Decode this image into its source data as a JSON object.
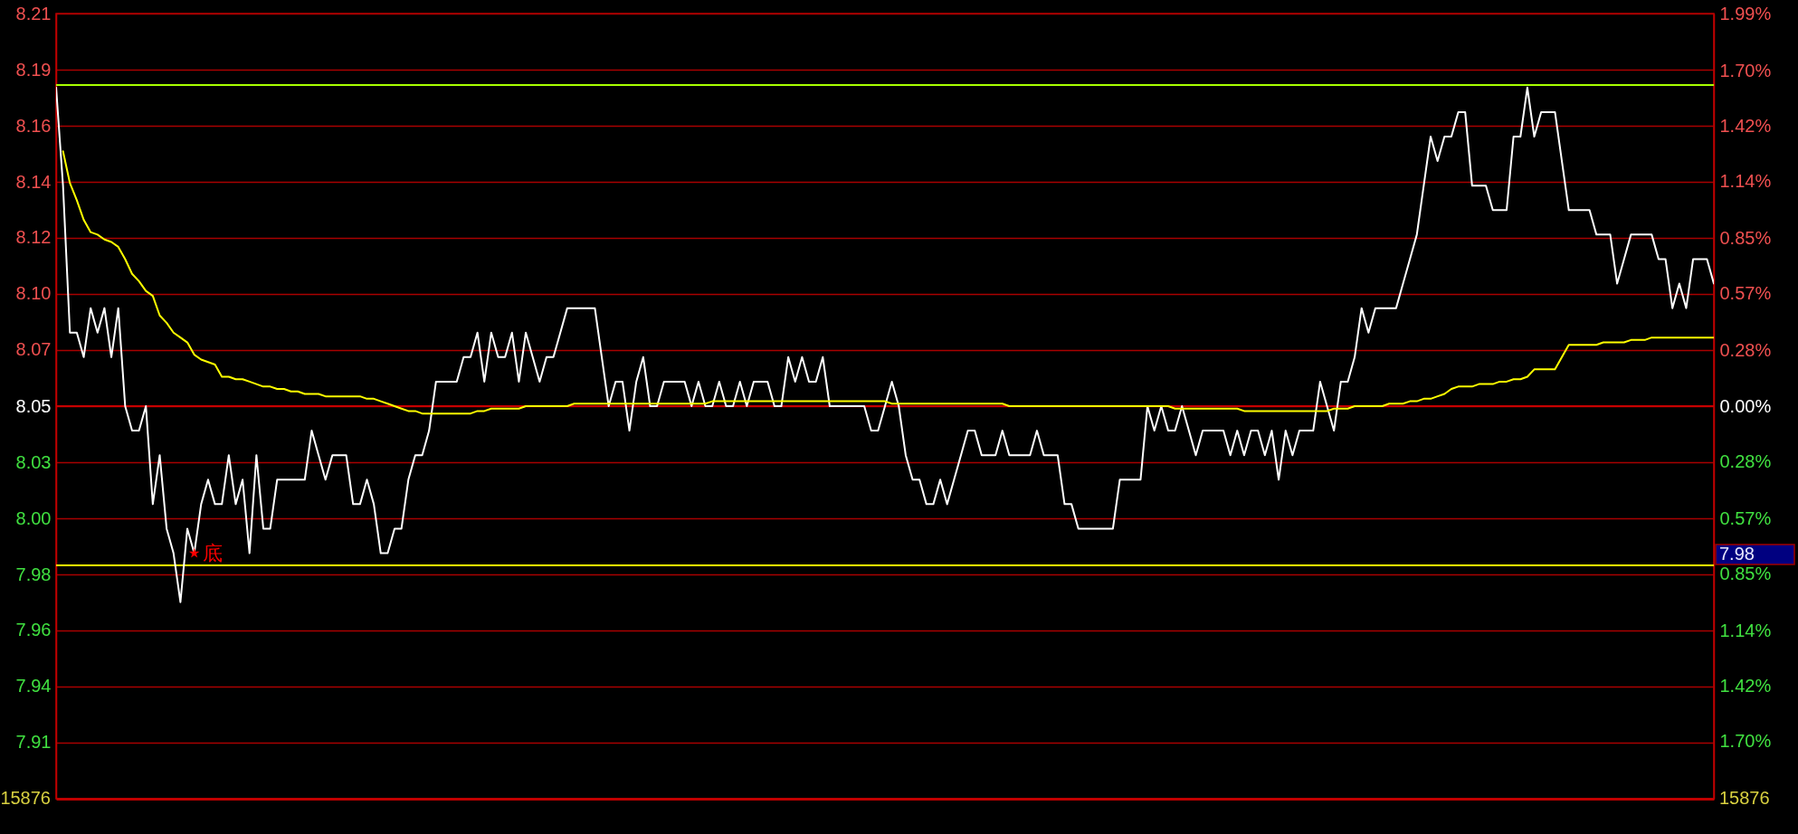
{
  "chart_data": {
    "type": "line",
    "categories": [
      null,
      null,
      null,
      null,
      null,
      null,
      null,
      null,
      null,
      null,
      null,
      null,
      null,
      null,
      null,
      null,
      null,
      null,
      null,
      null,
      null,
      null,
      null,
      null,
      null,
      null,
      null,
      null,
      null,
      null,
      null,
      null,
      null,
      null,
      null,
      null,
      null,
      null,
      null,
      null,
      null,
      null,
      null,
      null,
      null,
      null,
      null,
      null,
      null,
      null,
      null,
      null,
      null,
      null,
      null,
      null,
      null,
      null,
      null,
      null,
      null,
      null,
      null,
      null,
      null,
      null,
      null,
      null,
      null,
      null,
      null,
      null,
      null,
      null,
      null,
      null,
      null,
      null,
      null,
      null,
      null,
      null,
      null,
      null,
      null,
      null,
      null,
      null,
      null,
      null,
      null,
      null,
      null,
      null,
      null,
      null,
      null,
      null,
      null,
      null,
      null,
      null,
      null,
      null,
      null,
      null,
      null,
      null,
      null,
      null,
      null,
      null,
      null,
      null,
      null,
      null,
      null,
      null,
      null,
      null,
      null,
      null,
      null,
      null,
      null,
      null,
      null,
      null,
      null,
      null,
      null,
      null,
      null,
      null,
      null,
      null,
      null,
      null,
      null,
      null,
      null,
      null,
      null,
      null,
      null,
      null,
      null,
      null,
      null,
      null,
      null,
      null,
      null,
      null,
      null,
      null,
      null,
      null,
      null,
      null,
      null,
      null,
      null,
      null,
      null,
      null,
      null,
      null,
      null,
      null,
      null,
      null,
      null,
      null,
      null,
      null,
      null,
      null,
      null,
      null,
      null,
      null,
      null,
      null,
      null,
      null,
      null,
      null,
      null,
      null,
      null,
      null,
      null,
      null,
      null,
      null,
      null,
      null,
      null,
      null,
      null,
      null,
      null,
      null,
      null,
      null,
      null,
      null,
      null,
      null,
      null,
      null,
      null,
      null,
      null,
      null,
      null,
      null,
      null,
      null,
      null,
      null,
      null,
      null,
      null,
      null,
      null,
      null,
      null,
      null,
      null,
      null,
      null,
      null,
      null,
      null,
      null,
      null,
      null,
      null,
      null
    ],
    "ylim": [
      7.8898,
      8.2102
    ],
    "yticks": [
      {
        "value": 7.9127,
        "label": "7.91"
      },
      {
        "value": 7.9356,
        "label": "7.94"
      },
      {
        "value": 7.9585,
        "label": "7.96"
      },
      {
        "value": 7.9813,
        "label": "7.98"
      },
      {
        "value": 8.0042,
        "label": "8.00"
      },
      {
        "value": 8.0271,
        "label": "8.03"
      },
      {
        "value": 8.05,
        "label": "8.05"
      },
      {
        "value": 8.0729,
        "label": "8.07"
      },
      {
        "value": 8.0958,
        "label": "8.10"
      },
      {
        "value": 8.1187,
        "label": "8.12"
      },
      {
        "value": 8.1415,
        "label": "8.14"
      },
      {
        "value": 8.1644,
        "label": "8.16"
      },
      {
        "value": 8.1873,
        "label": "8.19"
      },
      {
        "value": 8.2102,
        "label": "8.21"
      }
    ],
    "y2lim": [
      -1.99,
      1.99
    ],
    "y2ticks": [
      {
        "value": -1.7,
        "label": "1.70%"
      },
      {
        "value": -1.42,
        "label": "1.42%"
      },
      {
        "value": -1.14,
        "label": "1.14%"
      },
      {
        "value": -0.85,
        "label": "0.85%"
      },
      {
        "value": -0.57,
        "label": "0.57%"
      },
      {
        "value": -0.28,
        "label": "0.28%"
      },
      {
        "value": 0,
        "label": "0.00%"
      },
      {
        "value": 0.28,
        "label": "0.28%"
      },
      {
        "value": 0.57,
        "label": "0.57%"
      },
      {
        "value": 0.85,
        "label": "0.85%"
      },
      {
        "value": 1.14,
        "label": "1.14%"
      },
      {
        "value": 1.42,
        "label": "1.42%"
      },
      {
        "value": 1.7,
        "label": "1.70%"
      },
      {
        "value": 1.99,
        "label": "1.99%"
      }
    ],
    "grid": "y",
    "tick_labels": "y",
    "series": [
      {
        "color": "#ffffff",
        "values": [
          8.18,
          8.14,
          8.08,
          8.08,
          8.07,
          8.09,
          8.08,
          8.09,
          8.07,
          8.09,
          8.05,
          8.04,
          8.04,
          8.05,
          8.01,
          8.03,
          8.0,
          7.99,
          7.97,
          8.0,
          7.99,
          8.01,
          8.02,
          8.01,
          8.01,
          8.03,
          8.01,
          8.02,
          7.99,
          8.03,
          8.0,
          8.0,
          8.02,
          8.02,
          8.02,
          8.02,
          8.02,
          8.04,
          8.03,
          8.02,
          8.03,
          8.03,
          8.03,
          8.01,
          8.01,
          8.02,
          8.01,
          7.99,
          7.99,
          8.0,
          8.0,
          8.02,
          8.03,
          8.03,
          8.04,
          8.06,
          8.06,
          8.06,
          8.06,
          8.07,
          8.07,
          8.08,
          8.06,
          8.08,
          8.07,
          8.07,
          8.08,
          8.06,
          8.08,
          8.07,
          8.06,
          8.07,
          8.07,
          8.08,
          8.09,
          8.09,
          8.09,
          8.09,
          8.09,
          8.07,
          8.05,
          8.06,
          8.06,
          8.04,
          8.06,
          8.07,
          8.05,
          8.05,
          8.06,
          8.06,
          8.06,
          8.06,
          8.05,
          8.06,
          8.05,
          8.05,
          8.06,
          8.05,
          8.05,
          8.06,
          8.05,
          8.06,
          8.06,
          8.06,
          8.05,
          8.05,
          8.07,
          8.06,
          8.07,
          8.06,
          8.06,
          8.07,
          8.05,
          8.05,
          8.05,
          8.05,
          8.05,
          8.05,
          8.04,
          8.04,
          8.05,
          8.06,
          8.05,
          8.03,
          8.02,
          8.02,
          8.01,
          8.01,
          8.02,
          8.01,
          8.02,
          8.03,
          8.04,
          8.04,
          8.03,
          8.03,
          8.03,
          8.04,
          8.03,
          8.03,
          8.03,
          8.03,
          8.04,
          8.03,
          8.03,
          8.03,
          8.01,
          8.01,
          8.0,
          8.0,
          8.0,
          8.0,
          8.0,
          8.0,
          8.02,
          8.02,
          8.02,
          8.02,
          8.05,
          8.04,
          8.05,
          8.04,
          8.04,
          8.05,
          8.04,
          8.03,
          8.04,
          8.04,
          8.04,
          8.04,
          8.03,
          8.04,
          8.03,
          8.04,
          8.04,
          8.03,
          8.04,
          8.02,
          8.04,
          8.03,
          8.04,
          8.04,
          8.04,
          8.06,
          8.05,
          8.04,
          8.06,
          8.06,
          8.07,
          8.09,
          8.08,
          8.09,
          8.09,
          8.09,
          8.09,
          8.1,
          8.11,
          8.12,
          8.14,
          8.16,
          8.15,
          8.16,
          8.16,
          8.17,
          8.17,
          8.14,
          8.14,
          8.14,
          8.13,
          8.13,
          8.13,
          8.16,
          8.16,
          8.18,
          8.16,
          8.17,
          8.17,
          8.17,
          8.15,
          8.13,
          8.13,
          8.13,
          8.13,
          8.12,
          8.12,
          8.12,
          8.1,
          8.11,
          8.12,
          8.12,
          8.12,
          8.12,
          8.11,
          8.11,
          8.09,
          8.1,
          8.09,
          8.11,
          8.11,
          8.11,
          8.1
        ]
      },
      {
        "color": "#ffff00",
        "values": [
          null,
          8.154,
          8.141,
          8.134,
          8.126,
          8.121,
          8.12,
          8.118,
          8.117,
          8.115,
          8.11,
          8.104,
          8.101,
          8.097,
          8.095,
          8.087,
          8.084,
          8.08,
          8.078,
          8.076,
          8.071,
          8.069,
          8.068,
          8.067,
          8.062,
          8.062,
          8.061,
          8.061,
          8.06,
          8.059,
          8.058,
          8.058,
          8.057,
          8.057,
          8.056,
          8.056,
          8.055,
          8.055,
          8.055,
          8.054,
          8.054,
          8.054,
          8.054,
          8.054,
          8.054,
          8.053,
          8.053,
          8.052,
          8.051,
          8.05,
          8.049,
          8.048,
          8.048,
          8.047,
          8.047,
          8.047,
          8.047,
          8.047,
          8.047,
          8.047,
          8.047,
          8.048,
          8.048,
          8.049,
          8.049,
          8.049,
          8.049,
          8.049,
          8.05,
          8.05,
          8.05,
          8.05,
          8.05,
          8.05,
          8.05,
          8.051,
          8.051,
          8.051,
          8.051,
          8.051,
          8.051,
          8.051,
          8.051,
          8.051,
          8.051,
          8.051,
          8.051,
          8.051,
          8.051,
          8.051,
          8.051,
          8.051,
          8.051,
          8.051,
          8.051,
          8.052,
          8.052,
          8.052,
          8.052,
          8.052,
          8.052,
          8.052,
          8.052,
          8.052,
          8.052,
          8.052,
          8.052,
          8.052,
          8.052,
          8.052,
          8.052,
          8.052,
          8.052,
          8.052,
          8.052,
          8.052,
          8.052,
          8.052,
          8.052,
          8.052,
          8.052,
          8.051,
          8.051,
          8.051,
          8.051,
          8.051,
          8.051,
          8.051,
          8.051,
          8.051,
          8.051,
          8.051,
          8.051,
          8.051,
          8.051,
          8.051,
          8.051,
          8.051,
          8.05,
          8.05,
          8.05,
          8.05,
          8.05,
          8.05,
          8.05,
          8.05,
          8.05,
          8.05,
          8.05,
          8.05,
          8.05,
          8.05,
          8.05,
          8.05,
          8.05,
          8.05,
          8.05,
          8.05,
          8.05,
          8.05,
          8.05,
          8.05,
          8.049,
          8.049,
          8.049,
          8.049,
          8.049,
          8.049,
          8.049,
          8.049,
          8.049,
          8.049,
          8.048,
          8.048,
          8.048,
          8.048,
          8.048,
          8.048,
          8.048,
          8.048,
          8.048,
          8.048,
          8.048,
          8.048,
          8.048,
          8.049,
          8.049,
          8.049,
          8.05,
          8.05,
          8.05,
          8.05,
          8.05,
          8.051,
          8.051,
          8.051,
          8.052,
          8.052,
          8.053,
          8.053,
          8.054,
          8.055,
          8.057,
          8.058,
          8.058,
          8.058,
          8.059,
          8.059,
          8.059,
          8.06,
          8.06,
          8.061,
          8.061,
          8.062,
          8.065,
          8.065,
          8.065,
          8.065,
          8.07,
          8.075,
          8.075,
          8.075,
          8.075,
          8.075,
          8.076,
          8.076,
          8.076,
          8.076,
          8.077,
          8.077,
          8.077,
          8.078,
          8.078,
          8.078,
          8.078,
          8.078,
          8.078,
          8.078,
          8.078,
          8.078,
          8.078
        ]
      },
      {
        "type": "scatter",
        "name": "底",
        "marker": "star",
        "color": "#ff0000",
        "values": [
          null,
          null,
          null,
          null,
          null,
          null,
          null,
          null,
          null,
          null,
          null,
          null,
          null,
          null,
          null,
          null,
          null,
          null,
          null,
          null,
          7.99,
          null,
          null,
          null,
          null,
          null,
          null,
          null,
          null,
          null,
          null,
          null,
          null,
          null,
          null,
          null,
          null,
          null,
          null,
          null,
          null,
          null,
          null,
          null,
          null,
          null,
          null,
          null,
          null,
          null,
          null,
          null,
          null,
          null,
          null,
          null,
          null,
          null,
          null,
          null,
          null,
          null,
          null,
          null,
          null,
          null,
          null,
          null,
          null,
          null,
          null,
          null,
          null,
          null,
          null,
          null,
          null,
          null,
          null,
          null,
          null,
          null,
          null,
          null,
          null,
          null,
          null,
          null,
          null,
          null,
          null,
          null,
          null,
          null,
          null,
          null,
          null,
          null,
          null,
          null,
          null,
          null,
          null,
          null,
          null,
          null,
          null,
          null,
          null,
          null,
          null,
          null,
          null,
          null,
          null,
          null,
          null,
          null,
          null,
          null,
          null,
          null,
          null,
          null,
          null,
          null,
          null,
          null,
          null,
          null,
          null,
          null,
          null,
          null,
          null,
          null,
          null,
          null,
          null,
          null,
          null,
          null,
          null,
          null,
          null,
          null,
          null,
          null,
          null,
          null,
          null,
          null,
          null,
          null,
          null,
          null,
          null,
          null,
          null,
          null,
          null,
          null,
          null,
          null,
          null,
          null,
          null,
          null,
          null,
          null,
          null,
          null,
          null,
          null,
          null,
          null,
          null,
          null,
          null,
          null,
          null,
          null,
          null,
          null,
          null,
          null,
          null,
          null,
          null,
          null,
          null,
          null,
          null,
          null,
          null,
          null,
          null,
          null,
          null,
          null,
          null,
          null,
          null,
          null,
          null,
          null,
          null,
          null,
          null,
          null,
          null,
          null,
          null,
          null,
          null,
          null,
          null,
          null,
          null,
          null,
          null,
          null,
          null,
          null,
          null,
          null,
          null,
          null,
          null,
          null,
          null,
          null,
          null,
          null,
          null,
          null,
          null,
          null,
          null,
          null,
          null
        ]
      }
    ],
    "ref_lines": [
      {
        "axis": "y",
        "value": 8.181,
        "color": "#a8ff00"
      },
      {
        "axis": "y",
        "value": 7.985,
        "label": "7.98",
        "color": "#ffff00"
      },
      {
        "axis": "y2",
        "value": 0,
        "color": "#c80000"
      }
    ],
    "annotations": [
      "15876",
      "15876"
    ]
  }
}
